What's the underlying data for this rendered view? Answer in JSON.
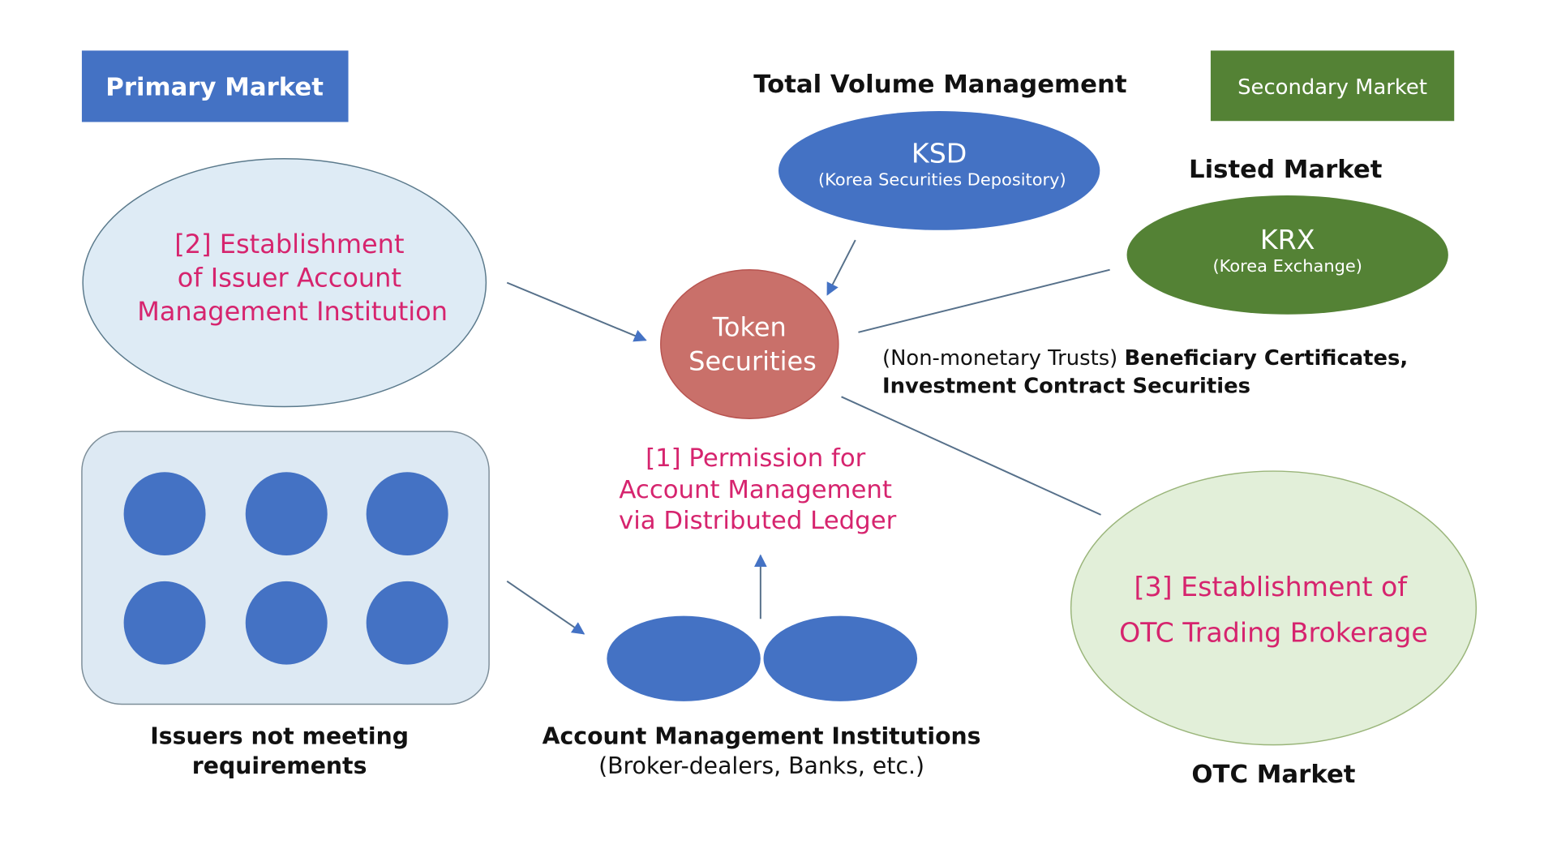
{
  "colors": {
    "primary_blue": "#4472C4",
    "secondary_green": "#548235",
    "token_red": "#C9706A",
    "highlight_pink": "#D6246E",
    "light_blue_fill": "#DEEBF5",
    "light_green_fill": "#E2EFD9"
  },
  "primary_market": {
    "label": "Primary Market"
  },
  "secondary_market": {
    "label": "Secondary Market"
  },
  "total_volume": {
    "label": "Total Volume Management"
  },
  "ksd": {
    "title": "KSD",
    "subtitle": "(Korea Securities Depository)"
  },
  "listed_market": {
    "label": "Listed Market"
  },
  "krx": {
    "title": "KRX",
    "subtitle": "(Korea Exchange)"
  },
  "issuer_institution": {
    "lines": [
      "[2] Establishment",
      "of Issuer Account",
      "Management Institution"
    ]
  },
  "token": {
    "lines": [
      "Token",
      "Securities"
    ]
  },
  "securities_types": {
    "line1_normal": "(Non-monetary Trusts) ",
    "line1_bold": "Beneficiary Certificates,",
    "line2": "Investment Contract Securities"
  },
  "permission": {
    "lines": [
      "[1] Permission for",
      "Account Management",
      "via Distributed Ledger"
    ]
  },
  "issuers": {
    "lines": [
      "Issuers not meeting",
      "requirements"
    ]
  },
  "institutions": {
    "title": "Account Management Institutions",
    "subtitle": "(Broker-dealers, Banks, etc.)"
  },
  "otc": {
    "lines": [
      "[3] Establishment of",
      "OTC Trading Brokerage"
    ],
    "market_label": "OTC Market"
  }
}
